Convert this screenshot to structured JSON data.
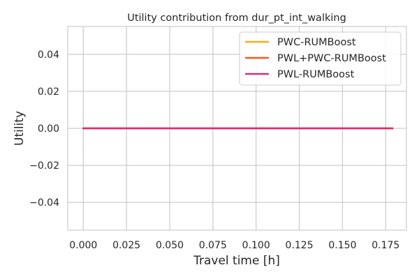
{
  "chart_data": {
    "type": "line",
    "title": "Utility contribution from dur_pt_int_walking",
    "xlabel": "Travel time [h]",
    "ylabel": "Utility",
    "xlim": [
      -0.009,
      0.187
    ],
    "ylim": [
      -0.055,
      0.055
    ],
    "xticks": [
      0.0,
      0.025,
      0.05,
      0.075,
      0.1,
      0.125,
      0.15,
      0.175
    ],
    "xtick_labels": [
      "0.000",
      "0.025",
      "0.050",
      "0.075",
      "0.100",
      "0.125",
      "0.150",
      "0.175"
    ],
    "yticks": [
      -0.04,
      -0.02,
      0.0,
      0.02,
      0.04
    ],
    "ytick_labels": [
      "−0.04",
      "−0.02",
      "0.00",
      "0.02",
      "0.04"
    ],
    "grid": true,
    "legend_position": "top-right",
    "series": [
      {
        "name": "PWC-RUMBoost",
        "color": "#f4ad1b",
        "x": [
          0.0,
          0.179
        ],
        "y": [
          0.0,
          0.0
        ]
      },
      {
        "name": "PWL+PWC-RUMBoost",
        "color": "#f05a1e",
        "x": [
          0.0,
          0.179
        ],
        "y": [
          0.0,
          0.0
        ]
      },
      {
        "name": "PWL-RUMBoost",
        "color": "#d52f7a",
        "x": [
          0.0,
          0.179
        ],
        "y": [
          0.0,
          0.0
        ]
      }
    ]
  }
}
